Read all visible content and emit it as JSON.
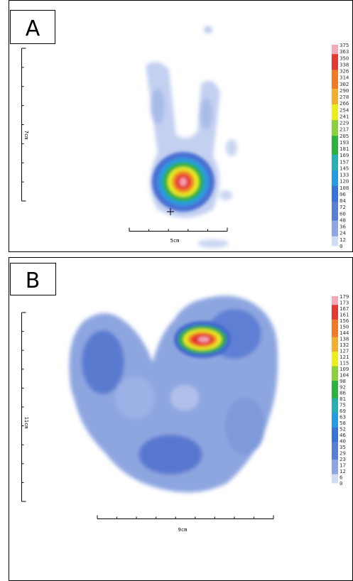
{
  "panels": [
    {
      "label": "A",
      "horizontal_scale": "5cm",
      "vertical_scale": "7cm",
      "colorbar_labels": [
        375,
        363,
        350,
        338,
        326,
        314,
        302,
        290,
        278,
        266,
        254,
        241,
        229,
        217,
        205,
        193,
        181,
        169,
        157,
        145,
        133,
        120,
        108,
        96,
        84,
        72,
        60,
        48,
        36,
        24,
        12,
        0
      ]
    },
    {
      "label": "B",
      "horizontal_scale": "9cm",
      "vertical_scale": "11cm",
      "colorbar_labels": [
        179,
        173,
        167,
        161,
        156,
        150,
        144,
        138,
        132,
        127,
        121,
        115,
        109,
        104,
        98,
        92,
        86,
        81,
        75,
        69,
        63,
        58,
        52,
        46,
        40,
        35,
        29,
        23,
        17,
        12,
        6,
        0
      ]
    }
  ]
}
